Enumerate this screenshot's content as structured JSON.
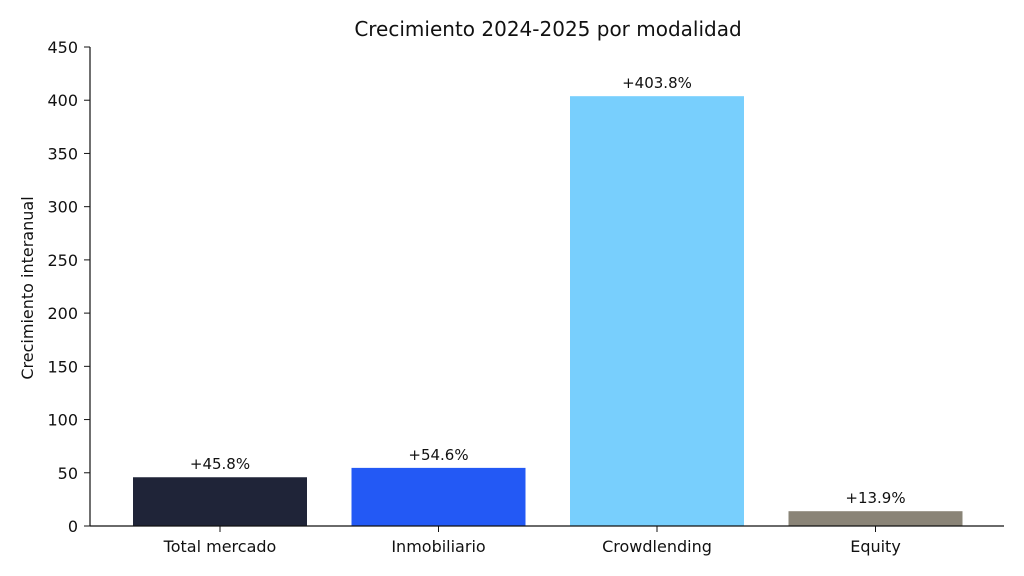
{
  "chart_data": {
    "type": "bar",
    "title": "Crecimiento 2024-2025 por modalidad",
    "xlabel": "",
    "ylabel": "Crecimiento interanual",
    "categories": [
      "Total mercado",
      "Inmobiliario",
      "Crowdlending",
      "Equity"
    ],
    "values": [
      45.8,
      54.6,
      403.8,
      13.9
    ],
    "data_labels": [
      "+45.8%",
      "+54.6%",
      "+403.8%",
      "+13.9%"
    ],
    "colors": [
      "#1f2438",
      "#2359f5",
      "#78cffd",
      "#8a8477"
    ],
    "ylim": [
      0,
      450
    ],
    "yticks": [
      0,
      50,
      100,
      150,
      200,
      250,
      300,
      350,
      400,
      450
    ],
    "grid": false,
    "legend": "none"
  }
}
